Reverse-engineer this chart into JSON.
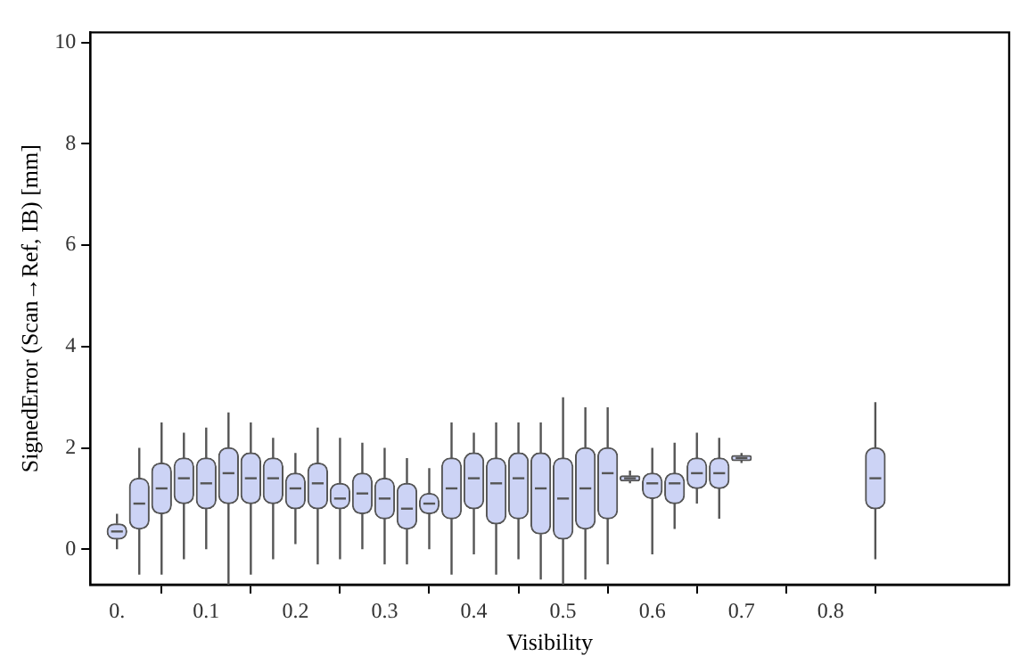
{
  "chart_data": {
    "type": "box",
    "xlabel": "Visibility",
    "ylabel": "SignedError (Scan→Ref, IB) [mm]",
    "color": "#ccd3f5",
    "x": [
      0,
      0.025,
      0.05,
      0.075,
      0.1,
      0.125,
      0.15,
      0.175,
      0.2,
      0.225,
      0.25,
      0.275,
      0.3,
      0.325,
      0.35,
      0.375,
      0.4,
      0.425,
      0.45,
      0.475,
      0.5,
      0.525,
      0.55,
      0.575,
      0.6,
      0.625,
      0.65,
      0.675,
      0.7,
      0.85
    ],
    "boxes": [
      {
        "low": 0,
        "q1": 0.2,
        "median": 0.35,
        "q3": 0.5,
        "high": 0.7
      },
      {
        "low": -0.5,
        "q1": 0.4,
        "median": 0.9,
        "q3": 1.4,
        "high": 2.0
      },
      {
        "low": -0.5,
        "q1": 0.7,
        "median": 1.2,
        "q3": 1.7,
        "high": 2.5
      },
      {
        "low": -0.2,
        "q1": 0.9,
        "median": 1.4,
        "q3": 1.8,
        "high": 2.3
      },
      {
        "low": 0,
        "q1": 0.8,
        "median": 1.3,
        "q3": 1.8,
        "high": 2.4
      },
      {
        "low": -0.7,
        "q1": 0.9,
        "median": 1.5,
        "q3": 2.0,
        "high": 2.7
      },
      {
        "low": -0.5,
        "q1": 0.9,
        "median": 1.4,
        "q3": 1.9,
        "high": 2.5
      },
      {
        "low": -0.2,
        "q1": 0.9,
        "median": 1.4,
        "q3": 1.8,
        "high": 2.2
      },
      {
        "low": 0.1,
        "q1": 0.8,
        "median": 1.2,
        "q3": 1.5,
        "high": 1.9
      },
      {
        "low": -0.3,
        "q1": 0.8,
        "median": 1.3,
        "q3": 1.7,
        "high": 2.4
      },
      {
        "low": -0.2,
        "q1": 0.8,
        "median": 1.0,
        "q3": 1.3,
        "high": 2.2
      },
      {
        "low": 0,
        "q1": 0.7,
        "median": 1.1,
        "q3": 1.5,
        "high": 2.1
      },
      {
        "low": -0.3,
        "q1": 0.6,
        "median": 1.0,
        "q3": 1.4,
        "high": 2.0
      },
      {
        "low": -0.3,
        "q1": 0.4,
        "median": 0.8,
        "q3": 1.3,
        "high": 1.8
      },
      {
        "low": 0,
        "q1": 0.7,
        "median": 0.9,
        "q3": 1.1,
        "high": 1.6
      },
      {
        "low": -0.5,
        "q1": 0.6,
        "median": 1.2,
        "q3": 1.8,
        "high": 2.5
      },
      {
        "low": -0.1,
        "q1": 0.8,
        "median": 1.4,
        "q3": 1.9,
        "high": 2.3
      },
      {
        "low": -0.5,
        "q1": 0.5,
        "median": 1.3,
        "q3": 1.8,
        "high": 2.5
      },
      {
        "low": -0.2,
        "q1": 0.6,
        "median": 1.4,
        "q3": 1.9,
        "high": 2.5
      },
      {
        "low": -0.6,
        "q1": 0.3,
        "median": 1.2,
        "q3": 1.9,
        "high": 2.5
      },
      {
        "low": -0.7,
        "q1": 0.2,
        "median": 1.0,
        "q3": 1.8,
        "high": 3.0
      },
      {
        "low": -0.6,
        "q1": 0.4,
        "median": 1.2,
        "q3": 2.0,
        "high": 2.8
      },
      {
        "low": -0.3,
        "q1": 0.6,
        "median": 1.5,
        "q3": 2.0,
        "high": 2.8
      },
      {
        "low": 1.3,
        "q1": 1.35,
        "median": 1.4,
        "q3": 1.45,
        "high": 1.55
      },
      {
        "low": -0.1,
        "q1": 1.0,
        "median": 1.3,
        "q3": 1.5,
        "high": 2.0
      },
      {
        "low": 0.4,
        "q1": 0.9,
        "median": 1.3,
        "q3": 1.5,
        "high": 2.1
      },
      {
        "low": 0.9,
        "q1": 1.2,
        "median": 1.5,
        "q3": 1.8,
        "high": 2.3
      },
      {
        "low": 0.6,
        "q1": 1.2,
        "median": 1.5,
        "q3": 1.8,
        "high": 2.2
      },
      {
        "low": 1.7,
        "q1": 1.75,
        "median": 1.8,
        "q3": 1.85,
        "high": 1.9
      },
      {
        "low": -0.2,
        "q1": 0.8,
        "median": 1.4,
        "q3": 2.0,
        "high": 2.9
      }
    ],
    "xlim": [
      -0.03,
      1.0
    ],
    "xticks": [
      {
        "value": 0,
        "label": "0."
      },
      0.1,
      0.2,
      0.3,
      0.4,
      0.5,
      0.6,
      0.7,
      0.8
    ],
    "ylim": [
      -0.7,
      10.2
    ],
    "yticks": [
      0,
      2,
      4,
      6,
      8,
      10
    ],
    "grid": false
  }
}
